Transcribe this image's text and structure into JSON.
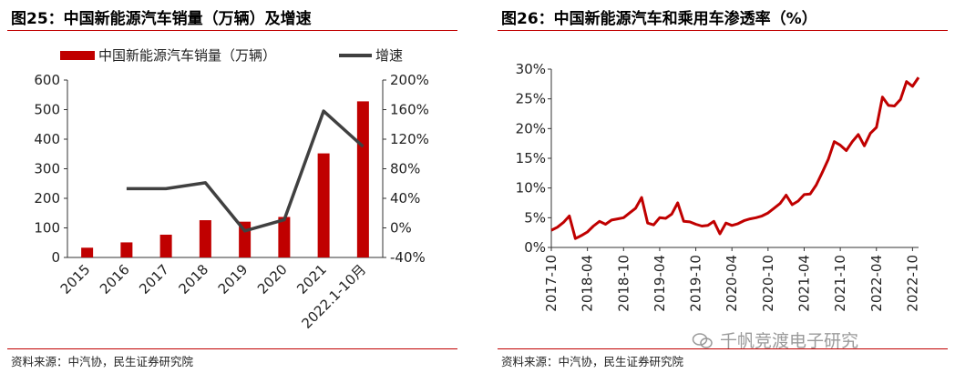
{
  "left": {
    "title": "图25：中国新能源汽车销量（万辆）及增速",
    "source": "资料来源：中汽协，民生证券研究院"
  },
  "right": {
    "title": "图26：中国新能源汽车和乘用车渗透率（%）",
    "source": "资料来源：中汽协，民生证券研究院"
  },
  "watermark": {
    "text": "千帆竞渡电子研究"
  },
  "colors": {
    "bar": "#c00000",
    "line": "#404040",
    "accent": "#c00000"
  },
  "chart_data": [
    {
      "type": "bar",
      "categories": [
        "2015",
        "2016",
        "2017",
        "2018",
        "2019",
        "2020",
        "2021",
        "2022.1-10月"
      ],
      "series": [
        {
          "name": "中国新能源汽车销量（万辆）",
          "type": "bar",
          "axis": "left",
          "values": [
            33,
            51,
            77,
            126,
            121,
            137,
            352,
            528
          ]
        },
        {
          "name": "增速",
          "type": "line",
          "axis": "right",
          "values": [
            null,
            53,
            53,
            61,
            -4,
            11,
            158,
            110
          ]
        }
      ],
      "ylim": [
        0,
        600
      ],
      "yticks": [
        "0",
        "100",
        "200",
        "300",
        "400",
        "500",
        "600"
      ],
      "y2lim": [
        -40,
        200
      ],
      "y2ticks": [
        "-40%",
        "0%",
        "40%",
        "80%",
        "120%",
        "160%",
        "200%"
      ],
      "legend": "top"
    },
    {
      "type": "line",
      "x_ticks": [
        "2017-10",
        "2018-04",
        "2018-10",
        "2019-04",
        "2019-10",
        "2020-04",
        "2020-10",
        "2021-04",
        "2021-10",
        "2022-04",
        "2022-10"
      ],
      "series": [
        {
          "name": "渗透率",
          "values": [
            2.9,
            3.4,
            4.2,
            5.3,
            1.5,
            2.0,
            2.6,
            3.6,
            4.4,
            3.9,
            4.6,
            4.8,
            5.0,
            5.8,
            6.6,
            8.4,
            4.1,
            3.8,
            5.0,
            4.9,
            5.6,
            7.5,
            4.4,
            4.3,
            3.9,
            3.6,
            3.7,
            4.4,
            2.3,
            4.1,
            3.7,
            4.0,
            4.5,
            4.8,
            5.0,
            5.3,
            5.8,
            6.6,
            7.4,
            8.8,
            7.2,
            7.8,
            8.9,
            9.0,
            10.5,
            12.6,
            14.8,
            17.8,
            17.2,
            16.3,
            17.8,
            19.0,
            17.1,
            19.2,
            20.2,
            25.3,
            23.9,
            23.8,
            24.9,
            27.9,
            27.1,
            28.6
          ]
        }
      ],
      "ylim": [
        0,
        30
      ],
      "yticks": [
        "0%",
        "5%",
        "10%",
        "15%",
        "20%",
        "25%",
        "30%"
      ]
    }
  ]
}
